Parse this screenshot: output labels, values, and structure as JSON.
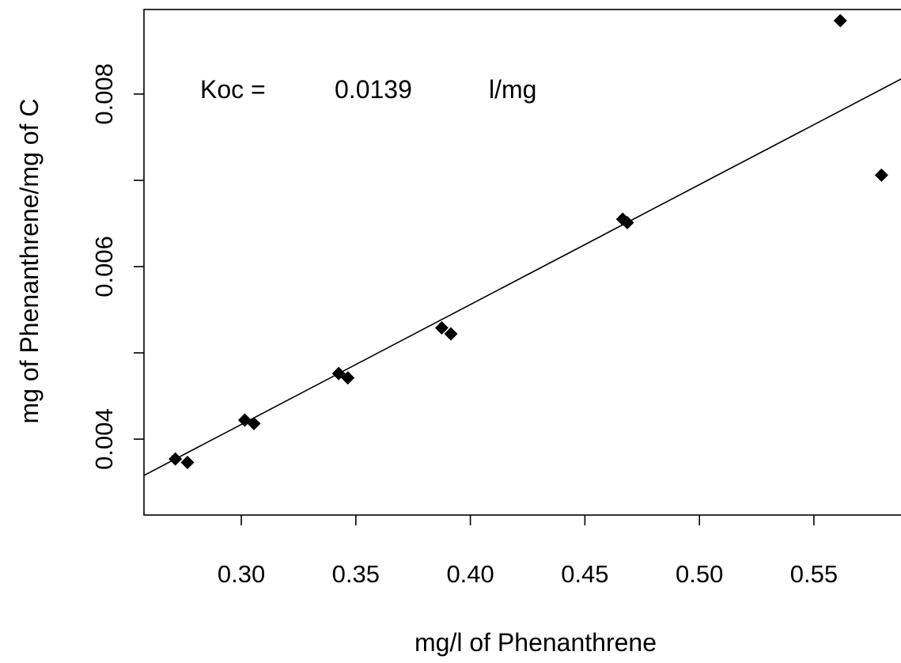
{
  "chart_data": {
    "type": "scatter",
    "title": "",
    "xlabel": "mg/l of Phenanthrene",
    "ylabel": "mg of Phenanthrene/mg of C",
    "xlim": [
      0.2575,
      0.5925
    ],
    "ylim": [
      0.00312,
      0.00898
    ],
    "x_ticks": [
      0.3,
      0.35,
      0.4,
      0.45,
      0.5,
      0.55
    ],
    "x_tick_labels": [
      "0.30",
      "0.35",
      "0.40",
      "0.45",
      "0.50",
      "0.55"
    ],
    "y_ticks": [
      0.004,
      0.005,
      0.006,
      0.007,
      0.008
    ],
    "y_tick_labels": [
      "0.004",
      "",
      "0.006",
      "",
      "0.008"
    ],
    "grid": false,
    "annotation": {
      "label": "Koc =",
      "value": "0.0139",
      "unit": "l/mg"
    },
    "points": [
      {
        "x": 0.2712,
        "y": 0.00377
      },
      {
        "x": 0.2765,
        "y": 0.00373
      },
      {
        "x": 0.3015,
        "y": 0.00422
      },
      {
        "x": 0.3055,
        "y": 0.00418
      },
      {
        "x": 0.3425,
        "y": 0.00476
      },
      {
        "x": 0.3465,
        "y": 0.00471
      },
      {
        "x": 0.3875,
        "y": 0.00529
      },
      {
        "x": 0.3915,
        "y": 0.00522
      },
      {
        "x": 0.4665,
        "y": 0.00655
      },
      {
        "x": 0.4685,
        "y": 0.00651
      },
      {
        "x": 0.5615,
        "y": 0.00885
      },
      {
        "x": 0.5795,
        "y": 0.00706
      }
    ],
    "fit_line": {
      "slope": 0.0139,
      "intercept": 0,
      "x": [
        0.2575,
        0.5925
      ]
    }
  }
}
